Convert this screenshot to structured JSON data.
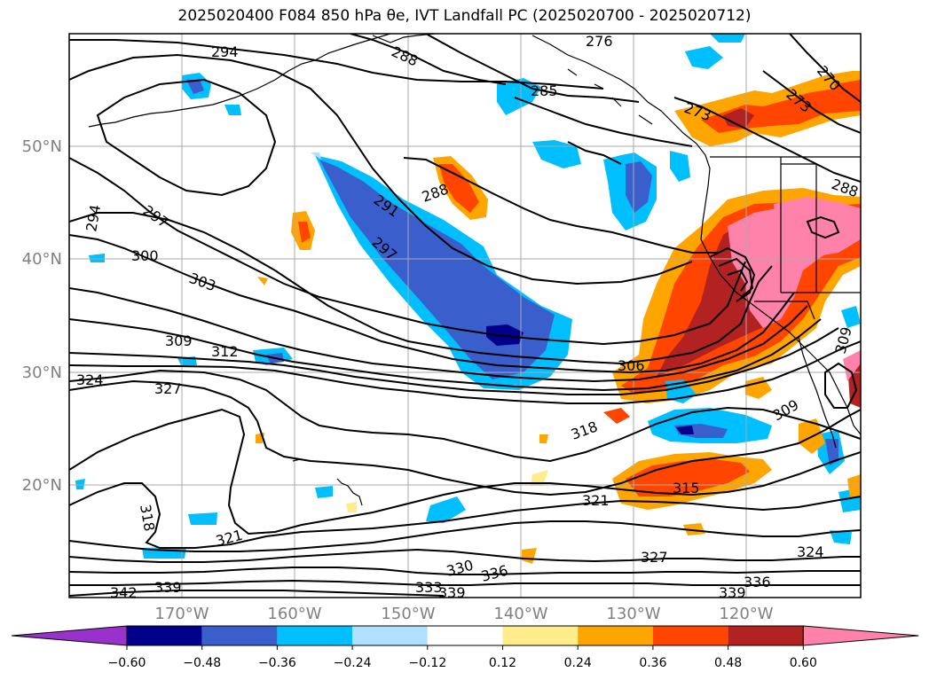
{
  "title": "2025020400 F084 850 hPa θe, IVT Landfall PC (2025020700 - 2025020712)",
  "map": {
    "projection": "PlateCarree",
    "lon_range": [
      -180,
      -110
    ],
    "lat_range": [
      10,
      60
    ],
    "lat_labels": [
      "50°N",
      "40°N",
      "30°N",
      "20°N"
    ],
    "lon_labels": [
      "170°W",
      "160°W",
      "150°W",
      "140°W",
      "130°W",
      "120°W"
    ],
    "gridlines": true
  },
  "contour_labels": [
    "294",
    "288",
    "285",
    "276",
    "273",
    "273",
    "270",
    "288",
    "291",
    "297",
    "297",
    "294",
    "300",
    "303",
    "309",
    "312",
    "324",
    "327",
    "306",
    "309",
    "309",
    "318",
    "315",
    "321",
    "318",
    "321",
    "330",
    "336",
    "327",
    "324",
    "333",
    "339",
    "339",
    "336",
    "342",
    "339",
    "288"
  ],
  "colorbar": {
    "ticks": [
      "−0.60",
      "−0.48",
      "−0.36",
      "−0.24",
      "−0.12",
      "0.12",
      "0.24",
      "0.36",
      "0.48",
      "0.60"
    ],
    "colors": [
      "#9932cc",
      "#00008b",
      "#3a5fcd",
      "#00bfff",
      "#b0e0ff",
      "#ffffff",
      "#ffec8b",
      "#ffa500",
      "#ff4500",
      "#b22222",
      "#ff82ab"
    ],
    "extend": "both"
  }
}
